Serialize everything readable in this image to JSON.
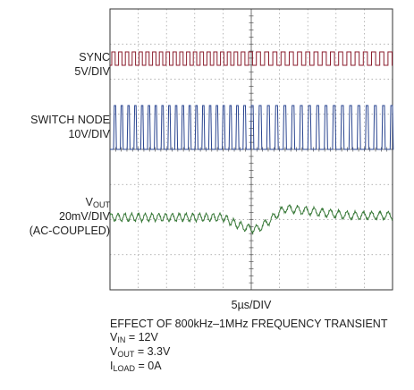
{
  "chart_data": {
    "type": "line",
    "xlabel": "5µs/DIV",
    "grid": true,
    "divisions": {
      "x": 10,
      "y": 8
    },
    "series": [
      {
        "name": "SYNC",
        "scale": "5V/DIV",
        "color": "#8b1e2e",
        "waveform": "square",
        "frequency_note": "800kHz–1MHz"
      },
      {
        "name": "SWITCH NODE",
        "scale": "10V/DIV",
        "color": "#2a4590",
        "waveform": "switching pulses"
      },
      {
        "name": "VOUT",
        "scale": "20mV/DIV",
        "coupling": "(AC-COUPLED)",
        "color": "#3a7a3a",
        "waveform": "ripple with transient dip"
      }
    ]
  },
  "labels": {
    "sync_name": "SYNC",
    "sync_scale": "5V/DIV",
    "sw_name": "SWITCH NODE",
    "sw_scale": "10V/DIV",
    "vout_main": "V",
    "vout_sub": "OUT",
    "vout_scale": "20mV/DIV",
    "vout_coupling": "(AC-COUPLED)"
  },
  "notes": {
    "title": "EFFECT OF 800kHz–1MHz FREQUENCY TRANSIENT",
    "vin_main": "V",
    "vin_sub": "IN",
    "vin_val": " = 12V",
    "vout_main": "V",
    "vout_sub": "OUT",
    "vout_val": " = 3.3V",
    "iload_main": "I",
    "iload_sub": "LOAD",
    "iload_val": " = 0A"
  }
}
